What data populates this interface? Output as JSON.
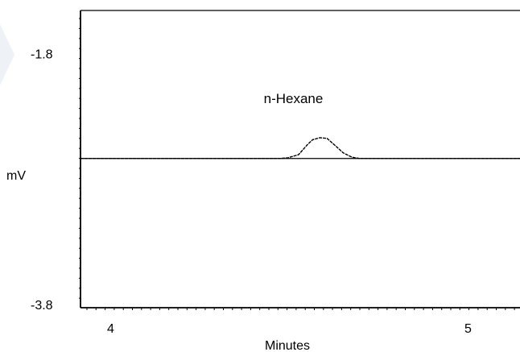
{
  "chart_data": {
    "type": "line",
    "title": "",
    "xlabel": "Minutes",
    "ylabel": "mV",
    "xlim": [
      3.92,
      5.15
    ],
    "ylim": [
      -3.82,
      -1.45
    ],
    "x_ticks": [
      {
        "value": 4,
        "label": "4"
      },
      {
        "value": 5,
        "label": "5"
      }
    ],
    "y_ticks": [
      {
        "value": -1.8,
        "label": "-1.8"
      },
      {
        "value": -3.8,
        "label": "-3.8"
      }
    ],
    "grid": false,
    "legend": "none",
    "line_color": "#000000",
    "baseline_y": -2.63,
    "series": [
      {
        "values": [
          [
            3.92,
            -2.63
          ],
          [
            4.2,
            -2.63
          ],
          [
            4.48,
            -2.63
          ],
          [
            4.5,
            -2.625
          ],
          [
            4.53,
            -2.6
          ],
          [
            4.555,
            -2.52
          ],
          [
            4.57,
            -2.48
          ],
          [
            4.59,
            -2.465
          ],
          [
            4.61,
            -2.47
          ],
          [
            4.63,
            -2.52
          ],
          [
            4.655,
            -2.585
          ],
          [
            4.68,
            -2.62
          ],
          [
            4.7,
            -2.63
          ],
          [
            5.15,
            -2.63
          ]
        ]
      }
    ],
    "annotations": [
      {
        "text": "n-Hexane",
        "x": 4.595,
        "y": -2.15
      }
    ]
  }
}
